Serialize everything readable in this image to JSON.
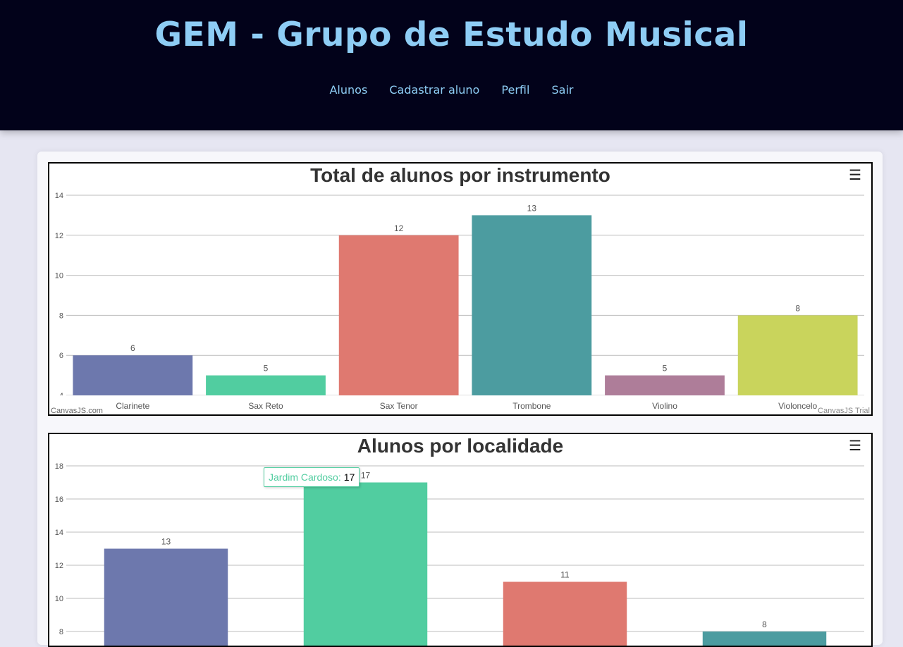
{
  "header": {
    "title": "GEM - Grupo de Estudo Musical",
    "nav": [
      "Alunos",
      "Cadastrar aluno",
      "Perfil",
      "Sair"
    ]
  },
  "credits": {
    "left": "CanvasJS.com",
    "right": "CanvasJS Trial"
  },
  "menu_icon": "hamburger-menu-icon",
  "charts": [
    {
      "type": "bar",
      "title": "Total de alunos por instrumento",
      "categories": [
        "Clarinete",
        "Sax Reto",
        "Sax Tenor",
        "Trombone",
        "Violino",
        "Violoncelo"
      ],
      "values": [
        6,
        5,
        12,
        13,
        5,
        8
      ],
      "colors": [
        "#6d78ad",
        "#51cda0",
        "#df7970",
        "#4c9ca0",
        "#ae7d99",
        "#c9d45c"
      ],
      "ylim": [
        4,
        14
      ],
      "yticks": [
        4,
        6,
        8,
        10,
        12,
        14
      ]
    },
    {
      "type": "bar",
      "title": "Alunos por localidade",
      "categories": [
        "",
        "Jardim Cardoso",
        "",
        ""
      ],
      "values": [
        13,
        17,
        11,
        8
      ],
      "colors": [
        "#6d78ad",
        "#51cda0",
        "#df7970",
        "#4c9ca0"
      ],
      "ylim": [
        8,
        18
      ],
      "yticks": [
        8,
        10,
        12,
        14,
        16,
        18
      ],
      "tooltip": {
        "label": "Jardim Cardoso:",
        "value": "17"
      }
    }
  ],
  "chart_data": [
    {
      "type": "bar",
      "title": "Total de alunos por instrumento",
      "categories": [
        "Clarinete",
        "Sax Reto",
        "Sax Tenor",
        "Trombone",
        "Violino",
        "Violoncelo"
      ],
      "values": [
        6,
        5,
        12,
        13,
        5,
        8
      ],
      "ylim": [
        4,
        14
      ],
      "grid": true
    },
    {
      "type": "bar",
      "title": "Alunos por localidade",
      "categories": [
        "",
        "Jardim Cardoso",
        "",
        ""
      ],
      "values": [
        13,
        17,
        11,
        8
      ],
      "ylim": [
        8,
        18
      ],
      "grid": true
    }
  ]
}
